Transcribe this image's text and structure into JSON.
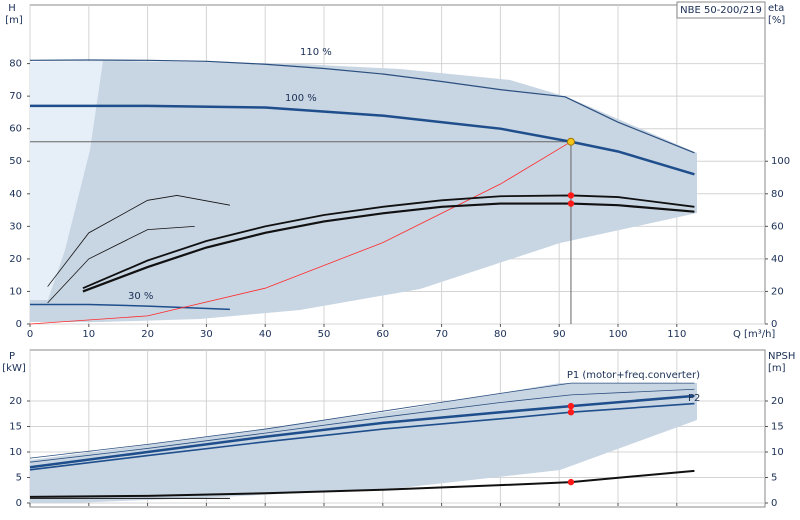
{
  "chart_data": [
    {
      "type": "line",
      "title": "NBE 50-200/219",
      "ylabel": "H",
      "yunit": "[m]",
      "y2label": "eta",
      "y2unit": "[%]",
      "xlabel": "Q [m³/h]",
      "xlim": [
        0,
        125
      ],
      "xticks": [
        0,
        10,
        20,
        30,
        40,
        50,
        60,
        70,
        80,
        90,
        100,
        110
      ],
      "ylim": [
        0,
        98
      ],
      "yticks": [
        0,
        10,
        20,
        30,
        40,
        50,
        60,
        70,
        80
      ],
      "y2lim": [
        0,
        196
      ],
      "y2ticks": [
        0,
        20,
        40,
        60,
        80,
        100
      ],
      "grid": true,
      "duty_point": {
        "x": 92,
        "y": 56,
        "color": "#f5c518"
      },
      "series": [
        {
          "name": "110 %",
          "color": "#2b4f7f",
          "width": 1.2,
          "x": [
            0,
            10,
            20,
            30,
            40,
            50,
            60,
            70,
            80,
            91,
            100,
            113
          ],
          "values": [
            81,
            81.1,
            81,
            80.7,
            79.8,
            78.5,
            76.8,
            74.5,
            72,
            69.8,
            62,
            52.6
          ]
        },
        {
          "name": "100 %",
          "color": "#1f4e8c",
          "width": 2.5,
          "x": [
            0,
            20,
            40,
            60,
            80,
            92,
            100,
            113
          ],
          "values": [
            67,
            67,
            66.5,
            64,
            60,
            56,
            53,
            46
          ]
        },
        {
          "name": "30 %",
          "color": "#1f4e8c",
          "width": 1.5,
          "x": [
            0,
            10,
            20,
            34
          ],
          "values": [
            6,
            6,
            5.5,
            4.5
          ]
        },
        {
          "color": "#ff2a2a",
          "width": 0.8,
          "x": [
            0,
            20,
            40,
            60,
            80,
            92
          ],
          "values": [
            0,
            2.5,
            11,
            25,
            43,
            56
          ]
        },
        {
          "color": "#111",
          "width": 2.2,
          "axis": "y2",
          "x": [
            9,
            20,
            30,
            40,
            50,
            60,
            70,
            80,
            92,
            100,
            113
          ],
          "values": [
            20,
            35,
            47,
            56,
            63,
            68,
            72,
            74,
            74,
            73,
            69
          ]
        },
        {
          "color": "#111",
          "width": 1.8,
          "axis": "y2",
          "x": [
            9,
            20,
            30,
            40,
            50,
            60,
            70,
            80,
            92,
            100,
            113
          ],
          "values": [
            22,
            39,
            51,
            60,
            67,
            72,
            76,
            78.5,
            79,
            78,
            72
          ]
        },
        {
          "color": "#111",
          "width": 0.8,
          "axis": "y2",
          "x": [
            3,
            10,
            20,
            25,
            34
          ],
          "values": [
            23,
            56,
            76,
            79,
            73
          ]
        },
        {
          "color": "#111",
          "width": 0.8,
          "axis": "y2",
          "x": [
            3,
            10,
            20,
            28
          ],
          "values": [
            13,
            40,
            58,
            60
          ]
        }
      ]
    },
    {
      "type": "line",
      "ylabel": "P",
      "yunit": "[kW]",
      "y2label": "NPSH",
      "y2unit": "[m]",
      "xlim": [
        0,
        125
      ],
      "xticks": [
        0,
        10,
        20,
        30,
        40,
        50,
        60,
        70,
        80,
        90,
        100,
        110
      ],
      "ylim": [
        0,
        30
      ],
      "yticks": [
        0,
        5,
        10,
        15,
        20
      ],
      "y2lim": [
        0,
        30
      ],
      "y2ticks": [
        0,
        5,
        10,
        15,
        20
      ],
      "grid": true,
      "duty_point": {
        "x": 92
      },
      "series": [
        {
          "color": "#2b4f7f",
          "width": 0.8,
          "x": [
            0,
            20,
            40,
            60,
            80,
            92,
            113
          ],
          "values": [
            8.8,
            11.5,
            14.5,
            18,
            21.5,
            23.5,
            23.5
          ]
        },
        {
          "color": "#2b4f7f",
          "width": 0.8,
          "x": [
            0,
            20,
            40,
            60,
            80,
            92,
            113
          ],
          "values": [
            8,
            10.7,
            13.7,
            16.8,
            19.7,
            21.2,
            22.3
          ]
        },
        {
          "name": "P1 (motor+freq.converter)",
          "color": "#1f4e8c",
          "width": 2.5,
          "x": [
            0,
            20,
            40,
            60,
            80,
            92,
            113
          ],
          "values": [
            7,
            10,
            13,
            15.7,
            17.8,
            19,
            21
          ]
        },
        {
          "name": "P2",
          "color": "#1f4e8c",
          "width": 1.6,
          "x": [
            0,
            20,
            40,
            60,
            80,
            92,
            113
          ],
          "values": [
            6.5,
            9.3,
            12,
            14.5,
            16.5,
            17.8,
            19.5
          ]
        },
        {
          "color": "#111",
          "width": 2,
          "axis": "y2",
          "x": [
            0,
            20,
            40,
            60,
            80,
            92,
            113
          ],
          "values": [
            1.2,
            1.4,
            1.9,
            2.6,
            3.5,
            4.1,
            6.3
          ]
        },
        {
          "color": "#111",
          "width": 1,
          "axis": "y2",
          "x": [
            0,
            34
          ],
          "values": [
            0.9,
            0.9
          ]
        }
      ]
    }
  ]
}
